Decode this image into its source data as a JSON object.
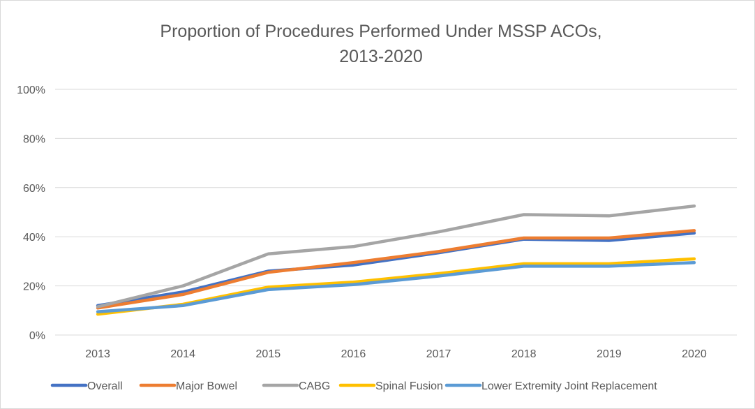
{
  "chart_data": {
    "type": "line",
    "title_line1": "Proportion of Procedures Performed Under MSSP ACOs,",
    "title_line2": "2013-2020",
    "xlabel": "",
    "ylabel": "",
    "categories": [
      "2013",
      "2014",
      "2015",
      "2016",
      "2017",
      "2018",
      "2019",
      "2020"
    ],
    "ylim": [
      0,
      100
    ],
    "yticks": [
      0,
      20,
      40,
      60,
      80,
      100
    ],
    "ytick_labels": [
      "0%",
      "20%",
      "40%",
      "60%",
      "80%",
      "100%"
    ],
    "grid": true,
    "legend_position": "bottom",
    "series": [
      {
        "name": "Overall",
        "color": "#4472C4",
        "values": [
          12.0,
          17.5,
          26.0,
          28.5,
          33.5,
          39.0,
          38.5,
          41.5
        ]
      },
      {
        "name": "Major Bowel",
        "color": "#ED7D31",
        "values": [
          11.0,
          16.5,
          25.5,
          29.5,
          34.0,
          39.5,
          39.5,
          42.5
        ]
      },
      {
        "name": "CABG",
        "color": "#A5A5A5",
        "values": [
          11.5,
          20.0,
          33.0,
          36.0,
          42.0,
          49.0,
          48.5,
          52.5
        ]
      },
      {
        "name": "Spinal Fusion",
        "color": "#FFC000",
        "values": [
          8.5,
          12.5,
          19.5,
          21.5,
          25.0,
          29.0,
          29.0,
          31.0
        ]
      },
      {
        "name": "Lower Extremity Joint Replacement",
        "color": "#5B9BD5",
        "values": [
          9.5,
          12.0,
          18.5,
          20.5,
          24.0,
          28.0,
          28.0,
          29.5
        ]
      }
    ]
  }
}
